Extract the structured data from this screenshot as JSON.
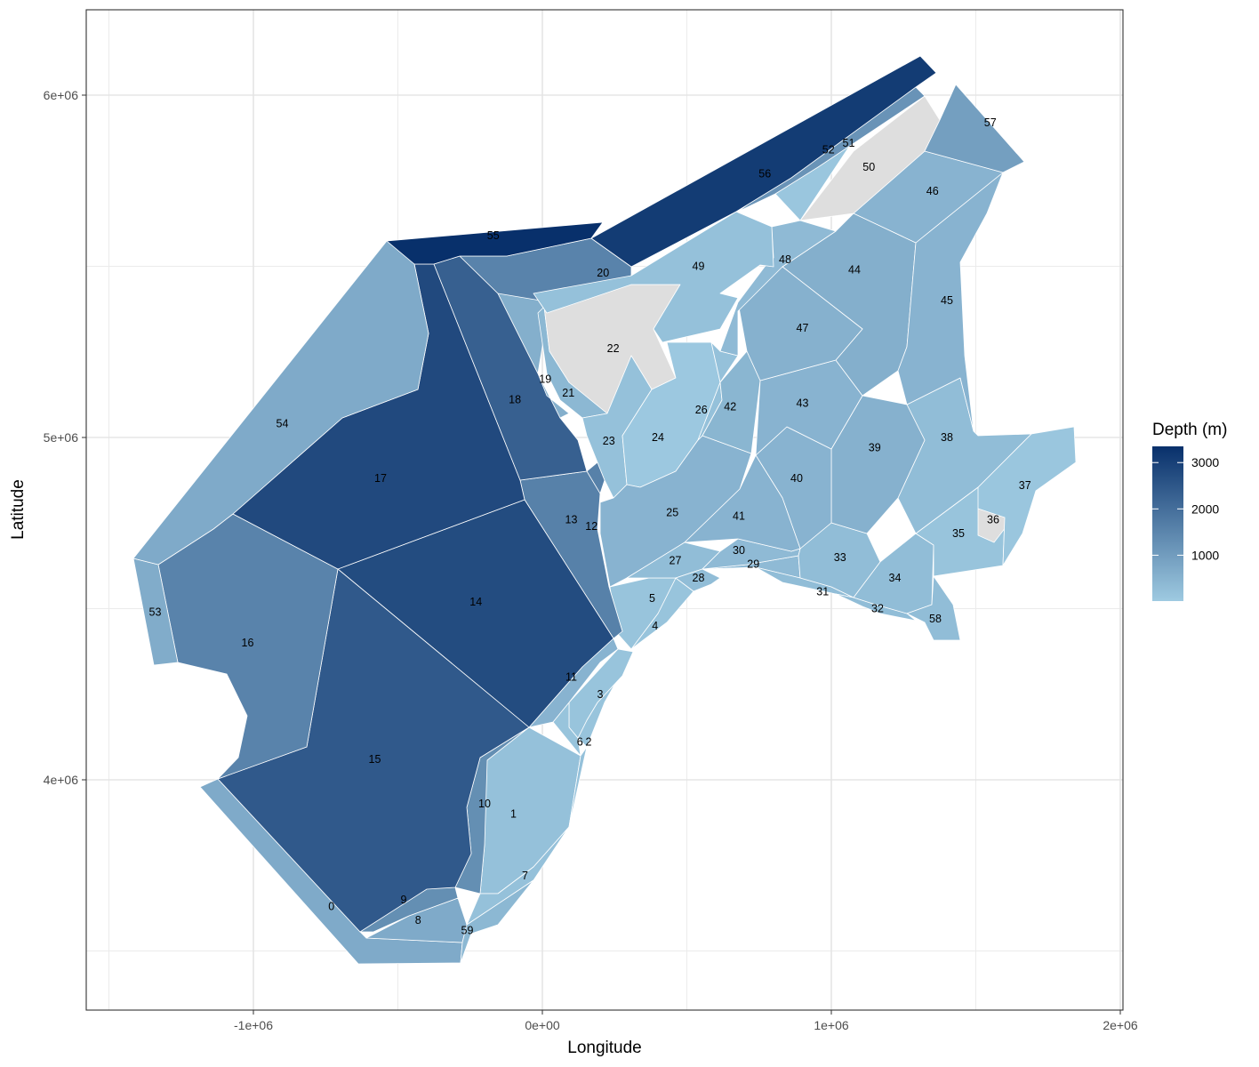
{
  "chart_data": {
    "type": "choropleth-map",
    "xlabel": "Longitude",
    "ylabel": "Latitude",
    "xlim": [
      -1600000,
      2000000
    ],
    "ylim": [
      3140000,
      6250000
    ],
    "x_ticks": [
      {
        "value": -1000000,
        "label": "-1e+06"
      },
      {
        "value": 0,
        "label": "0e+00"
      },
      {
        "value": 1000000,
        "label": "1e+06"
      },
      {
        "value": 2000000,
        "label": "2e+06"
      }
    ],
    "y_ticks": [
      {
        "value": 4000000,
        "label": "4e+06"
      },
      {
        "value": 5000000,
        "label": "5e+06"
      },
      {
        "value": 6000000,
        "label": "6e+06"
      }
    ],
    "grid": true,
    "legend": {
      "title": "Depth (m)",
      "position": "right",
      "range": [
        10,
        3350
      ],
      "ticks": [
        {
          "value": 1000,
          "label": "1000"
        },
        {
          "value": 2000,
          "label": "2000"
        },
        {
          "value": 3000,
          "label": "3000"
        }
      ],
      "low_color": "#9ecae1",
      "high_color": "#08306b",
      "na_color": "#dedede"
    },
    "regions": [
      {
        "id": "0",
        "label": "0",
        "depth": 700,
        "lx": -730000,
        "ly": 3630000
      },
      {
        "id": "1",
        "label": "1",
        "depth": 200,
        "lx": -100000,
        "ly": 3900000
      },
      {
        "id": "2",
        "label": "2",
        "depth": 150,
        "lx": 160000,
        "ly": 4110000
      },
      {
        "id": "3",
        "label": "3",
        "depth": 150,
        "lx": 200000,
        "ly": 4250000
      },
      {
        "id": "4",
        "label": "4",
        "depth": 150,
        "lx": 390000,
        "ly": 4450000
      },
      {
        "id": "5",
        "label": "5",
        "depth": 150,
        "lx": 380000,
        "ly": 4530000
      },
      {
        "id": "6",
        "label": "6",
        "depth": 150,
        "lx": 130000,
        "ly": 4110000
      },
      {
        "id": "7",
        "label": "7",
        "depth": 200,
        "lx": -60000,
        "ly": 3720000
      },
      {
        "id": "8",
        "label": "8",
        "depth": 700,
        "lx": -430000,
        "ly": 3590000
      },
      {
        "id": "9",
        "label": "9",
        "depth": 1300,
        "lx": -480000,
        "ly": 3650000
      },
      {
        "id": "10",
        "label": "10",
        "depth": 1300,
        "lx": -200000,
        "ly": 3930000
      },
      {
        "id": "11",
        "label": "11",
        "depth": 500,
        "lx": 100000,
        "ly": 4300000
      },
      {
        "id": "12",
        "label": "12",
        "depth": 1600,
        "lx": 170000,
        "ly": 4740000
      },
      {
        "id": "13",
        "label": "13",
        "depth": 1600,
        "lx": 100000,
        "ly": 4760000
      },
      {
        "id": "14",
        "label": "14",
        "depth": 2750,
        "lx": -230000,
        "ly": 4520000
      },
      {
        "id": "15",
        "label": "15",
        "depth": 2450,
        "lx": -580000,
        "ly": 4060000
      },
      {
        "id": "16",
        "label": "16",
        "depth": 1550,
        "lx": -1020000,
        "ly": 4400000
      },
      {
        "id": "17",
        "label": "17",
        "depth": 2800,
        "lx": -560000,
        "ly": 4880000
      },
      {
        "id": "18",
        "label": "18",
        "depth": 2300,
        "lx": -95000,
        "ly": 5110000
      },
      {
        "id": "19",
        "label": "19",
        "depth": 600,
        "lx": 10000,
        "ly": 5170000
      },
      {
        "id": "20",
        "label": "20",
        "depth": 1550,
        "lx": 210000,
        "ly": 5480000
      },
      {
        "id": "21",
        "label": "21",
        "depth": 400,
        "lx": 90000,
        "ly": 5130000
      },
      {
        "id": "22",
        "label": "22",
        "depth": null,
        "lx": 245000,
        "ly": 5260000
      },
      {
        "id": "23",
        "label": "23",
        "depth": 200,
        "lx": 230000,
        "ly": 4990000
      },
      {
        "id": "24",
        "label": "24",
        "depth": 50,
        "lx": 400000,
        "ly": 5000000
      },
      {
        "id": "25",
        "label": "25",
        "depth": 500,
        "lx": 450000,
        "ly": 4780000
      },
      {
        "id": "26",
        "label": "26",
        "depth": 200,
        "lx": 550000,
        "ly": 5080000
      },
      {
        "id": "27",
        "label": "27",
        "depth": 300,
        "lx": 460000,
        "ly": 4640000
      },
      {
        "id": "28",
        "label": "28",
        "depth": 300,
        "lx": 540000,
        "ly": 4590000
      },
      {
        "id": "29",
        "label": "29",
        "depth": 350,
        "lx": 730000,
        "ly": 4630000
      },
      {
        "id": "30",
        "label": "30",
        "depth": 350,
        "lx": 680000,
        "ly": 4670000
      },
      {
        "id": "31",
        "label": "31",
        "depth": 300,
        "lx": 970000,
        "ly": 4550000
      },
      {
        "id": "32",
        "label": "32",
        "depth": 300,
        "lx": 1160000,
        "ly": 4500000
      },
      {
        "id": "33",
        "label": "33",
        "depth": 300,
        "lx": 1030000,
        "ly": 4650000
      },
      {
        "id": "34",
        "label": "34",
        "depth": 300,
        "lx": 1220000,
        "ly": 4590000
      },
      {
        "id": "35",
        "label": "35",
        "depth": 150,
        "lx": 1440000,
        "ly": 4720000
      },
      {
        "id": "36",
        "label": "36",
        "depth": null,
        "lx": 1560000,
        "ly": 4760000
      },
      {
        "id": "37",
        "label": "37",
        "depth": 100,
        "lx": 1670000,
        "ly": 4860000
      },
      {
        "id": "38",
        "label": "38",
        "depth": 300,
        "lx": 1400000,
        "ly": 5000000
      },
      {
        "id": "39",
        "label": "39",
        "depth": 550,
        "lx": 1150000,
        "ly": 4970000
      },
      {
        "id": "40",
        "label": "40",
        "depth": 500,
        "lx": 880000,
        "ly": 4880000
      },
      {
        "id": "41",
        "label": "41",
        "depth": 500,
        "lx": 680000,
        "ly": 4770000
      },
      {
        "id": "42",
        "label": "42",
        "depth": 450,
        "lx": 650000,
        "ly": 5090000
      },
      {
        "id": "43",
        "label": "43",
        "depth": 500,
        "lx": 900000,
        "ly": 5100000
      },
      {
        "id": "44",
        "label": "44",
        "depth": 600,
        "lx": 1080000,
        "ly": 5490000
      },
      {
        "id": "45",
        "label": "45",
        "depth": 500,
        "lx": 1400000,
        "ly": 5400000
      },
      {
        "id": "46",
        "label": "46",
        "depth": 500,
        "lx": 1350000,
        "ly": 5720000
      },
      {
        "id": "47",
        "label": "47",
        "depth": 550,
        "lx": 900000,
        "ly": 5320000
      },
      {
        "id": "48",
        "label": "48",
        "depth": 350,
        "lx": 840000,
        "ly": 5520000
      },
      {
        "id": "49",
        "label": "49",
        "depth": 200,
        "lx": 540000,
        "ly": 5500000
      },
      {
        "id": "50",
        "label": "50",
        "depth": null,
        "lx": 1130000,
        "ly": 5790000
      },
      {
        "id": "51",
        "label": "51",
        "depth": 100,
        "lx": 1060000,
        "ly": 5860000
      },
      {
        "id": "52",
        "label": "52",
        "depth": 1200,
        "lx": 990000,
        "ly": 5840000
      },
      {
        "id": "53",
        "label": "53",
        "depth": 650,
        "lx": -1340000,
        "ly": 4490000
      },
      {
        "id": "54",
        "label": "54",
        "depth": 700,
        "lx": -900000,
        "ly": 5040000
      },
      {
        "id": "55",
        "label": "55",
        "depth": 3350,
        "lx": -170000,
        "ly": 5590000
      },
      {
        "id": "56",
        "label": "56",
        "depth": 3100,
        "lx": 770000,
        "ly": 5770000
      },
      {
        "id": "57",
        "label": "57",
        "depth": 950,
        "lx": 1550000,
        "ly": 5920000
      },
      {
        "id": "58",
        "label": "58",
        "depth": 300,
        "lx": 1360000,
        "ly": 4470000
      },
      {
        "id": "59",
        "label": "59",
        "depth": 400,
        "lx": -260000,
        "ly": 3560000
      }
    ]
  }
}
